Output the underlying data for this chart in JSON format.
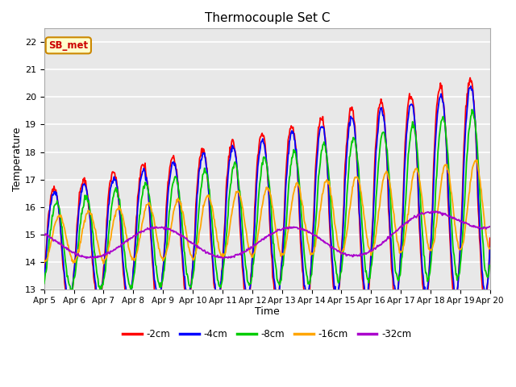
{
  "title": "Thermocouple Set C",
  "xlabel": "Time",
  "ylabel": "Temperature",
  "ylim": [
    13.0,
    22.5
  ],
  "yticks": [
    13.0,
    14.0,
    15.0,
    16.0,
    17.0,
    18.0,
    19.0,
    20.0,
    21.0,
    22.0
  ],
  "fig_bg_color": "#ffffff",
  "plot_bg_color": "#e8e8e8",
  "line_colors": {
    "-2cm": "#ff0000",
    "-4cm": "#0000ff",
    "-8cm": "#00cc00",
    "-16cm": "#ffa500",
    "-32cm": "#aa00cc"
  },
  "legend_labels": [
    "-2cm",
    "-4cm",
    "-8cm",
    "-16cm",
    "-32cm"
  ],
  "annotation_text": "SB_met",
  "x_tick_labels": [
    "Apr 5",
    "Apr 6",
    "Apr 7",
    "Apr 8",
    "Apr 9",
    "Apr 10",
    "Apr 11",
    "Apr 12",
    "Apr 13",
    "Apr 14",
    "Apr 15",
    "Apr 16",
    "Apr 17",
    "Apr 18",
    "Apr 19",
    "Apr 20"
  ],
  "grid_color": "#ffffff",
  "line_width": 1.3
}
